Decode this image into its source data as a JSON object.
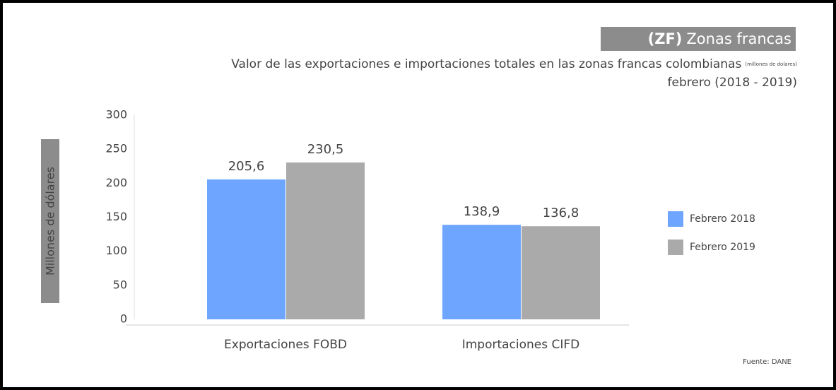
{
  "chart_data": {
    "type": "bar",
    "title_tag": "(ZF)",
    "title": "Zonas francas",
    "subtitle": "Valor de las exportaciones e importaciones totales en las zonas francas colombianas",
    "subtitle_note": "(millones de dolares)",
    "subtitle_line2": "febrero (2018 - 2019)",
    "y_label": "Millones de dólares",
    "source": "Fuente: DANE",
    "categories": [
      "Exportaciones FOBD",
      "Importaciones CIFD"
    ],
    "series": [
      {
        "name": "Febrero 2018",
        "color": "#6ea6ff",
        "values": [
          205.6,
          138.9
        ],
        "value_labels": [
          "205,6",
          "138,9"
        ]
      },
      {
        "name": "Febrero 2019",
        "color": "#aaaaaa",
        "values": [
          230.5,
          136.8
        ],
        "value_labels": [
          "230,5",
          "136,8"
        ]
      }
    ],
    "ylim": [
      0,
      300
    ],
    "yticks": [
      0,
      50,
      100,
      150,
      200,
      250,
      300
    ],
    "grid": false,
    "legend": "right"
  }
}
